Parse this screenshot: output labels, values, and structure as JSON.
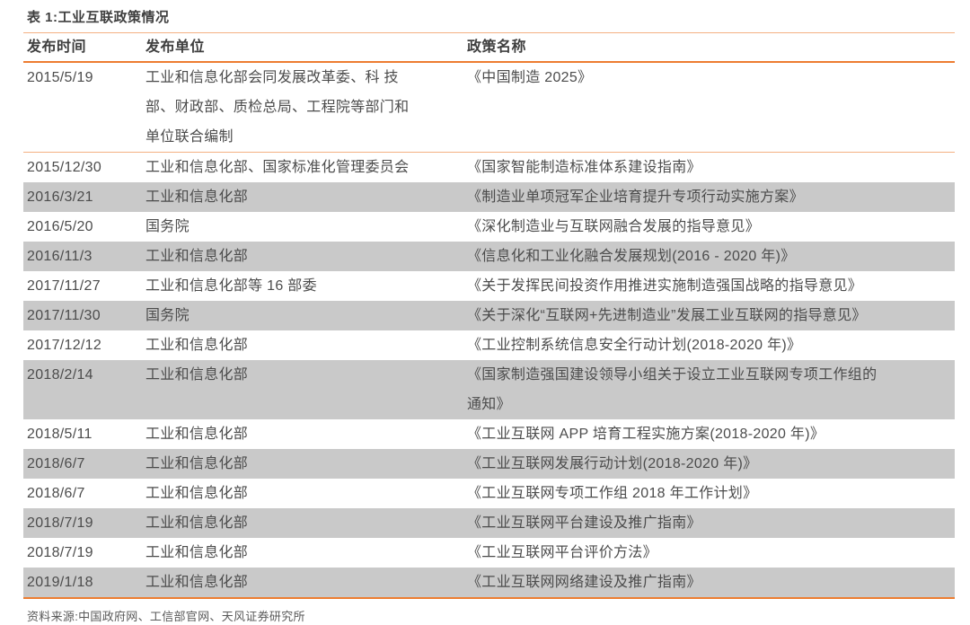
{
  "table": {
    "title": "表 1:工业互联政策情况",
    "columns": [
      "发布时间",
      "发布单位",
      "政策名称"
    ],
    "rows": [
      {
        "date": "2015/5/19",
        "unit": "工业和信息化部会同发展改革委、科 技\n部、财政部、质检总局、工程院等部门和\n单位联合编制",
        "policy": "《中国制造 2025》"
      },
      {
        "date": "2015/12/30",
        "unit": "工业和信息化部、国家标准化管理委员会",
        "policy": "《国家智能制造标准体系建设指南》"
      },
      {
        "date": "2016/3/21",
        "unit": "工业和信息化部",
        "policy": "《制造业单项冠军企业培育提升专项行动实施方案》"
      },
      {
        "date": "2016/5/20",
        "unit": "国务院",
        "policy": "《深化制造业与互联网融合发展的指导意见》"
      },
      {
        "date": "2016/11/3",
        "unit": "工业和信息化部",
        "policy": "《信息化和工业化融合发展规划(2016 - 2020 年)》"
      },
      {
        "date": "2017/11/27",
        "unit": "工业和信息化部等 16 部委",
        "policy": "《关于发挥民间投资作用推进实施制造强国战略的指导意见》"
      },
      {
        "date": "2017/11/30",
        "unit": "国务院",
        "policy": "《关于深化“互联网+先进制造业”发展工业互联网的指导意见》"
      },
      {
        "date": "2017/12/12",
        "unit": "工业和信息化部",
        "policy": "《工业控制系统信息安全行动计划(2018-2020 年)》"
      },
      {
        "date": "2018/2/14",
        "unit": "工业和信息化部",
        "policy": "《国家制造强国建设领导小组关于设立工业互联网专项工作组的\n通知》"
      },
      {
        "date": "2018/5/11",
        "unit": "工业和信息化部",
        "policy": "《工业互联网 APP 培育工程实施方案(2018-2020 年)》"
      },
      {
        "date": "2018/6/7",
        "unit": "工业和信息化部",
        "policy": "《工业互联网发展行动计划(2018-2020 年)》"
      },
      {
        "date": "2018/6/7",
        "unit": "工业和信息化部",
        "policy": "《工业互联网专项工作组 2018 年工作计划》"
      },
      {
        "date": "2018/7/19",
        "unit": "工业和信息化部",
        "policy": "《工业互联网平台建设及推广指南》"
      },
      {
        "date": "2018/7/19",
        "unit": "工业和信息化部",
        "policy": "《工业互联网平台评价方法》"
      },
      {
        "date": "2019/1/18",
        "unit": "工业和信息化部",
        "policy": "《工业互联网网络建设及推广指南》"
      }
    ],
    "source": "资料来源:中国政府网、工信部官网、天风证券研究所"
  },
  "colors": {
    "accent_orange": "#ED7D31",
    "light_orange": "#F4B183",
    "row_shade_gray": "#C9C9C9",
    "title_text": "#3F3F3F",
    "body_text": "#4C4C4C",
    "source_text": "#595959"
  }
}
